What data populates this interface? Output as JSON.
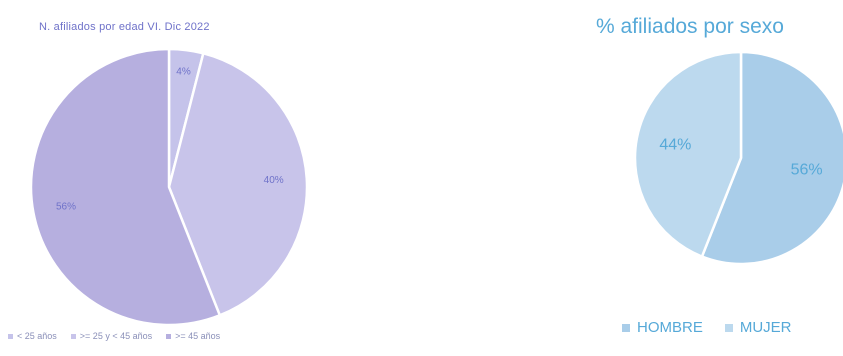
{
  "chart_data": [
    {
      "type": "pie",
      "title": "N. afiliados por edad VI. Dic 2022",
      "categories": [
        "< 25 años",
        ">= 25 y < 45 años",
        ">= 45 años"
      ],
      "values": [
        4,
        40,
        56
      ],
      "data_labels": [
        "4%",
        "40%",
        "56%"
      ],
      "colors": [
        "#c5c3ea",
        "#c8c4ea",
        "#b6afdf"
      ],
      "label_color": "#6f72c9",
      "legend": "bottom"
    },
    {
      "type": "pie",
      "title": "% afiliados por sexo",
      "categories": [
        "HOMBRE",
        "MUJER"
      ],
      "values": [
        56,
        44
      ],
      "data_labels": [
        "56%",
        "44%"
      ],
      "colors": [
        "#a9cde9",
        "#bcd9ee"
      ],
      "label_color": "#56a9d8",
      "legend": "bottom"
    }
  ]
}
